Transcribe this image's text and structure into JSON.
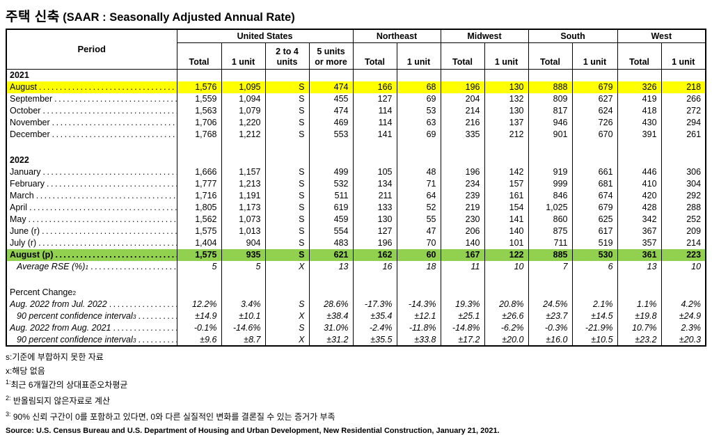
{
  "title": {
    "korean": "주택 신축",
    "english": " (SAAR : Seasonally Adjusted Annual Rate)"
  },
  "colors": {
    "highlight_yellow": "#ffff00",
    "highlight_green": "#92d050",
    "border": "#000000"
  },
  "table": {
    "period_header": "Period",
    "groups": [
      {
        "label": "United States",
        "columns": [
          "Total",
          "1 unit",
          "2 to 4\nunits",
          "5 units\nor more"
        ]
      },
      {
        "label": "Northeast",
        "columns": [
          "Total",
          "1 unit"
        ]
      },
      {
        "label": "Midwest",
        "columns": [
          "Total",
          "1 unit"
        ]
      },
      {
        "label": "South",
        "columns": [
          "Total",
          "1 unit"
        ]
      },
      {
        "label": "West",
        "columns": [
          "Total",
          "1 unit"
        ]
      }
    ],
    "rows": [
      {
        "type": "year",
        "label": "2021"
      },
      {
        "type": "data",
        "label": "August",
        "dots": true,
        "highlight": "yellow",
        "values": [
          "1,576",
          "1,095",
          "S",
          "474",
          "166",
          "68",
          "196",
          "130",
          "888",
          "679",
          "326",
          "218"
        ]
      },
      {
        "type": "data",
        "label": "September",
        "dots": true,
        "values": [
          "1,559",
          "1,094",
          "S",
          "455",
          "127",
          "69",
          "204",
          "132",
          "809",
          "627",
          "419",
          "266"
        ]
      },
      {
        "type": "data",
        "label": "October",
        "dots": true,
        "values": [
          "1,563",
          "1,079",
          "S",
          "474",
          "114",
          "53",
          "214",
          "130",
          "817",
          "624",
          "418",
          "272"
        ]
      },
      {
        "type": "data",
        "label": "November",
        "dots": true,
        "values": [
          "1,706",
          "1,220",
          "S",
          "469",
          "114",
          "63",
          "216",
          "137",
          "946",
          "726",
          "430",
          "294"
        ]
      },
      {
        "type": "data",
        "label": "December",
        "dots": true,
        "values": [
          "1,768",
          "1,212",
          "S",
          "553",
          "141",
          "69",
          "335",
          "212",
          "901",
          "670",
          "391",
          "261"
        ]
      },
      {
        "type": "blank",
        "label": ""
      },
      {
        "type": "year",
        "label": "2022"
      },
      {
        "type": "data",
        "label": "January",
        "dots": true,
        "values": [
          "1,666",
          "1,157",
          "S",
          "499",
          "105",
          "48",
          "196",
          "142",
          "919",
          "661",
          "446",
          "306"
        ]
      },
      {
        "type": "data",
        "label": "February",
        "dots": true,
        "values": [
          "1,777",
          "1,213",
          "S",
          "532",
          "134",
          "71",
          "234",
          "157",
          "999",
          "681",
          "410",
          "304"
        ]
      },
      {
        "type": "data",
        "label": "March",
        "dots": true,
        "values": [
          "1,716",
          "1,191",
          "S",
          "511",
          "211",
          "64",
          "239",
          "161",
          "846",
          "674",
          "420",
          "292"
        ]
      },
      {
        "type": "data",
        "label": "April",
        "dots": true,
        "values": [
          "1,805",
          "1,173",
          "S",
          "619",
          "133",
          "52",
          "219",
          "154",
          "1,025",
          "679",
          "428",
          "288"
        ]
      },
      {
        "type": "data",
        "label": "May",
        "dots": true,
        "values": [
          "1,562",
          "1,073",
          "S",
          "459",
          "130",
          "55",
          "230",
          "141",
          "860",
          "625",
          "342",
          "252"
        ]
      },
      {
        "type": "data",
        "label": "June (r)",
        "dots": true,
        "values": [
          "1,575",
          "1,013",
          "S",
          "554",
          "127",
          "47",
          "206",
          "140",
          "875",
          "617",
          "367",
          "209"
        ]
      },
      {
        "type": "data",
        "label": "July (r)",
        "dots": true,
        "values": [
          "1,404",
          "904",
          "S",
          "483",
          "196",
          "70",
          "140",
          "101",
          "711",
          "519",
          "357",
          "214"
        ]
      },
      {
        "type": "data",
        "label": "August (p)",
        "dots": true,
        "highlight": "green",
        "values": [
          "1,575",
          "935",
          "S",
          "621",
          "162",
          "60",
          "167",
          "122",
          "885",
          "530",
          "361",
          "223"
        ]
      },
      {
        "type": "rse",
        "label": "Average RSE (%)",
        "sup": "1",
        "dots": true,
        "values": [
          "5",
          "5",
          "X",
          "13",
          "16",
          "18",
          "11",
          "10",
          "7",
          "6",
          "13",
          "10"
        ]
      },
      {
        "type": "blank",
        "label": ""
      },
      {
        "type": "pct-header",
        "label": "Percent Change",
        "sup": "2"
      },
      {
        "type": "pct",
        "label": "Aug. 2022 from Jul. 2022",
        "dots": true,
        "values": [
          "12.2%",
          "3.4%",
          "S",
          "28.6%",
          "-17.3%",
          "-14.3%",
          "19.3%",
          "20.8%",
          "24.5%",
          "2.1%",
          "1.1%",
          "4.2%"
        ]
      },
      {
        "type": "ci",
        "label": "90 percent confidence interval",
        "sup": "3",
        "dots": true,
        "values": [
          "±14.9",
          "±10.1",
          "X",
          "±38.4",
          "±35.4",
          "±12.1",
          "±25.1",
          "±26.6",
          "±23.7",
          "±14.5",
          "±19.8",
          "±24.9"
        ]
      },
      {
        "type": "pct",
        "label": "Aug. 2022 from Aug. 2021",
        "dots": true,
        "values": [
          "-0.1%",
          "-14.6%",
          "S",
          "31.0%",
          "-2.4%",
          "-11.8%",
          "-14.8%",
          "-6.2%",
          "-0.3%",
          "-21.9%",
          "10.7%",
          "2.3%"
        ]
      },
      {
        "type": "ci",
        "label": "90 percent confidence interval",
        "sup": "3",
        "dots": true,
        "values": [
          "±9.6",
          "±8.7",
          "X",
          "±31.2",
          "±35.5",
          "±33.8",
          "±17.2",
          "±20.0",
          "±16.0",
          "±10.5",
          "±23.2",
          "±20.3"
        ]
      }
    ]
  },
  "footnotes": [
    {
      "sup": "",
      "text": "s:기준에 부합하지 못한 자료"
    },
    {
      "sup": "",
      "text": "x:해당 없음"
    },
    {
      "sup": "1:",
      "text": "최근 6개월간의 상대표준오차평균"
    },
    {
      "sup": "2:",
      "text": " 반올림되지 않은자료로 계산"
    },
    {
      "sup": "3:",
      "text": " 90% 신뢰 구간이 0를 포함하고 있다면, 0와 다른 실질적인 변화를 결론질 수 있는 증거가 부족"
    }
  ],
  "source": "Source: U.S. Census Bureau and U.S. Department of Housing and Urban Development, New Residential Construction, January 21, 2021."
}
